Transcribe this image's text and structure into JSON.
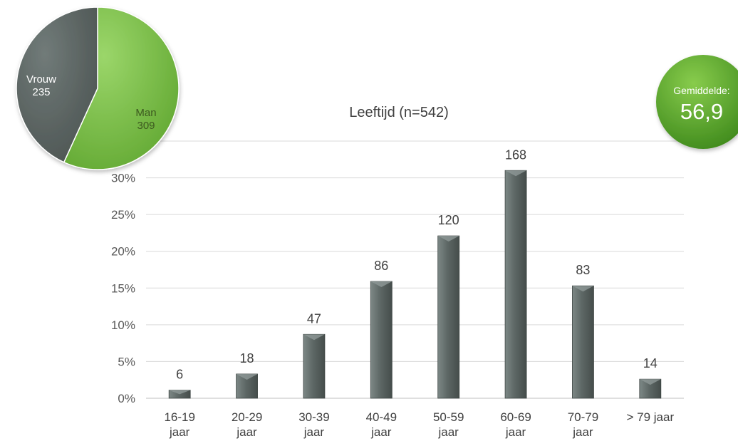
{
  "chart_data": [
    {
      "type": "bar",
      "title": "Leeftijd (n=542)",
      "categories": [
        [
          "16-19",
          "jaar"
        ],
        [
          "20-29",
          "jaar"
        ],
        [
          "30-39",
          "jaar"
        ],
        [
          "40-49",
          "jaar"
        ],
        [
          "50-59",
          "jaar"
        ],
        [
          "60-69",
          "jaar"
        ],
        [
          "70-79",
          "jaar"
        ],
        [
          "> 79 jaar"
        ]
      ],
      "values_percent": [
        1.1,
        3.3,
        8.7,
        15.9,
        22.1,
        31.0,
        15.3,
        2.6
      ],
      "data_labels": [
        "6",
        "18",
        "47",
        "86",
        "120",
        "168",
        "83",
        "14"
      ],
      "ylim": [
        0,
        35
      ],
      "yticks": [
        0,
        5,
        10,
        15,
        20,
        25,
        30
      ],
      "ytick_labels": [
        "0%",
        "5%",
        "10%",
        "15%",
        "20%",
        "25%",
        "30%"
      ],
      "grid": true,
      "bar_color": "#5d6765"
    },
    {
      "type": "pie",
      "slices": [
        {
          "label": "Man",
          "value": 309,
          "color": "#7ac143"
        },
        {
          "label": "Vrouw",
          "value": 235,
          "color": "#5b6462"
        }
      ]
    }
  ],
  "average_badge": {
    "caption": "Gemiddelde:",
    "value": "56,9",
    "color": "#5faa2e"
  }
}
